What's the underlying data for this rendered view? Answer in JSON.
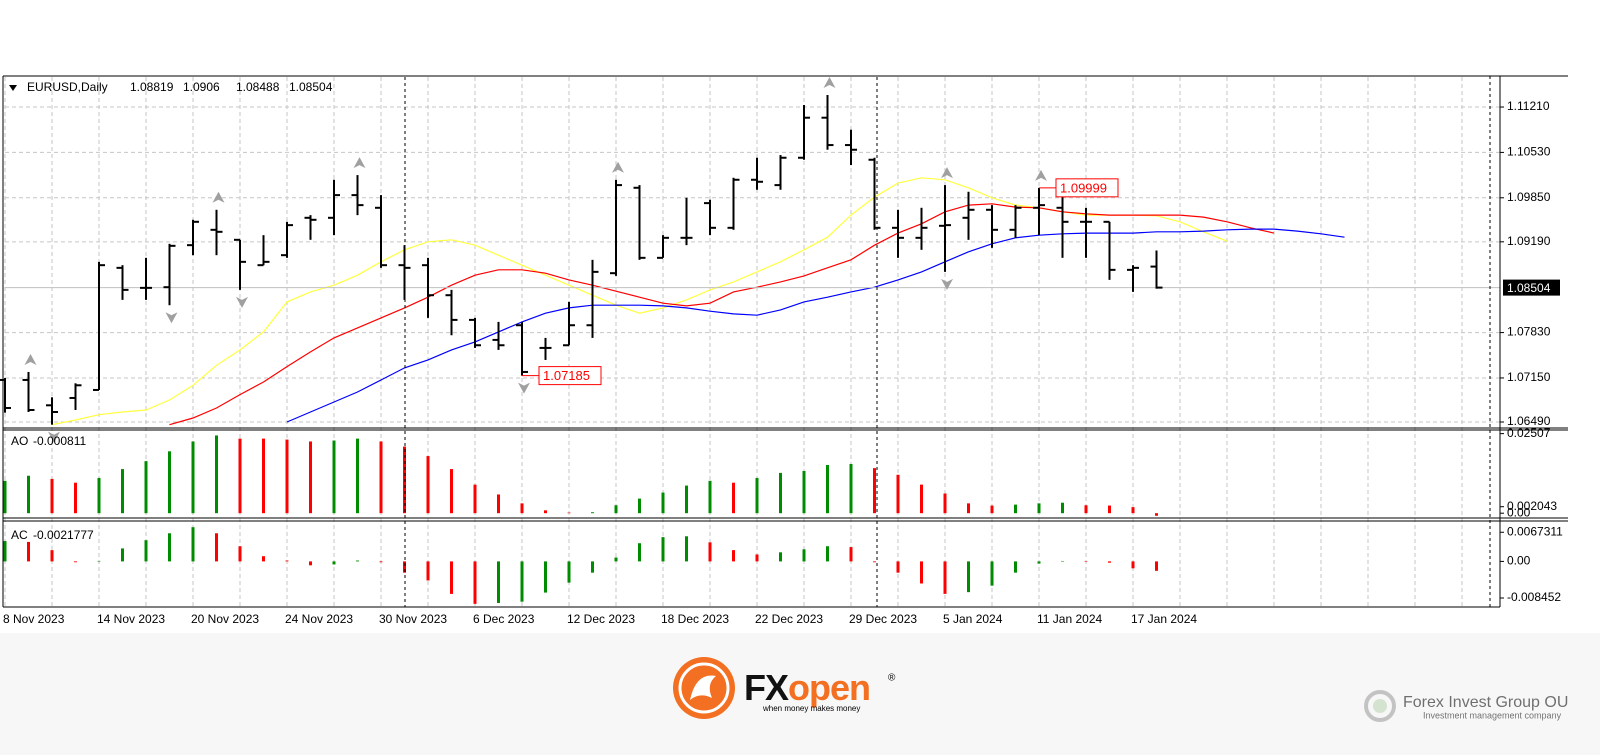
{
  "chart_data": [
    {
      "type": "ohlc",
      "title": "EURUSD,Daily",
      "grid": true,
      "color": "#000000",
      "categories": [
        "8 Nov 2023",
        null,
        null,
        null,
        "14 Nov 2023",
        null,
        null,
        null,
        "20 Nov 2023",
        null,
        null,
        null,
        "24 Nov 2023",
        null,
        null,
        null,
        "30 Nov 2023",
        null,
        null,
        null,
        "6 Dec 2023",
        null,
        null,
        null,
        "12 Dec 2023",
        null,
        null,
        null,
        "18 Dec 2023",
        null,
        null,
        null,
        "22 Dec 2023",
        null,
        null,
        null,
        "29 Dec 2023",
        null,
        null,
        null,
        "5 Jan 2024",
        null,
        null,
        null,
        "11 Jan 2024",
        null,
        null,
        null,
        "17 Jan 2024",
        null,
        null,
        null,
        null,
        null,
        null,
        null,
        null,
        null
      ],
      "open": [
        1.0712,
        1.0712,
        1.0674,
        1.0685,
        1.0697,
        1.088,
        1.085,
        1.0851,
        1.0914,
        1.0937,
        1.0922,
        1.0884,
        1.0899,
        1.0955,
        1.0955,
        1.0989,
        1.097,
        1.0884,
        1.0884,
        1.0839,
        1.0802,
        1.0772,
        1.0794,
        1.076,
        1.0764,
        1.0794,
        1.0872,
        1.1,
        1.0895,
        1.0925,
        1.0977,
        1.094,
        1.1012,
        1.1004,
        1.1045,
        1.1105,
        1.1064,
        1.1042,
        1.094,
        1.0925,
        1.0943,
        1.0955,
        1.0967,
        1.0937,
        1.097,
        1.097,
        1.0949,
        1.0949,
        1.0877,
        1.08819,
        null,
        null,
        null,
        null,
        null,
        null,
        null,
        null
      ],
      "high": [
        1.0715,
        1.0724,
        1.0686,
        1.0707,
        1.0889,
        1.0884,
        1.0895,
        1.0916,
        1.0952,
        1.0967,
        1.0922,
        1.0929,
        1.0949,
        1.0959,
        1.1012,
        1.1019,
        1.0989,
        1.0914,
        1.0895,
        1.0847,
        1.0805,
        1.0799,
        1.0799,
        1.0775,
        1.0829,
        1.0892,
        1.1012,
        1.1004,
        1.0929,
        1.0985,
        1.0982,
        1.1015,
        1.1045,
        1.1049,
        1.1124,
        1.1139,
        1.1087,
        1.1045,
        1.0967,
        1.097,
        1.1004,
        1.0994,
        1.0974,
        1.0974,
        1.09999,
        1.0989,
        1.097,
        1.0949,
        1.0884,
        1.0906,
        null,
        null,
        null,
        null,
        null,
        null,
        null,
        null
      ],
      "low": [
        1.0663,
        1.0664,
        1.0645,
        1.0667,
        1.0697,
        1.0832,
        1.0832,
        1.0824,
        1.0899,
        1.0899,
        1.0847,
        1.0884,
        1.0895,
        1.0922,
        1.0929,
        1.0959,
        1.088,
        1.0832,
        1.0805,
        1.0779,
        1.076,
        1.0757,
        1.07185,
        1.0742,
        1.0764,
        1.0775,
        1.0868,
        1.0892,
        1.0895,
        1.0914,
        1.0929,
        1.0937,
        1.0997,
        1.0997,
        1.1042,
        1.1057,
        1.1034,
        1.0937,
        1.0895,
        1.0907,
        1.0874,
        1.0922,
        1.091,
        1.0925,
        1.0929,
        1.0895,
        1.0895,
        1.0862,
        1.0844,
        1.08488,
        null,
        null,
        null,
        null,
        null,
        null,
        null,
        null
      ],
      "close": [
        1.067,
        1.0667,
        1.0664,
        1.0704,
        1.0884,
        1.0847,
        1.085,
        1.0913,
        1.0949,
        1.0934,
        1.0889,
        1.0889,
        1.0944,
        1.0952,
        1.0989,
        1.0974,
        1.0884,
        1.088,
        1.0839,
        1.0802,
        1.0764,
        1.0764,
        1.0724,
        1.076,
        1.0794,
        1.0874,
        1.1004,
        1.0895,
        1.0925,
        1.0925,
        1.094,
        1.1012,
        1.1009,
        1.1045,
        1.1105,
        1.1064,
        1.1057,
        1.094,
        1.0925,
        1.094,
        1.0944,
        1.0967,
        1.0937,
        1.097,
        1.0974,
        1.0949,
        1.0949,
        1.0877,
        1.088,
        1.08504,
        null,
        null,
        null,
        null,
        null,
        null,
        null,
        null
      ],
      "series": [
        {
          "color": "#ffff40",
          "values": [
            null,
            null,
            1.0645,
            1.0652,
            1.066,
            1.0664,
            1.0667,
            1.0682,
            1.0704,
            1.0734,
            1.0757,
            1.0784,
            1.0829,
            1.0844,
            1.0854,
            1.0869,
            1.0889,
            1.0907,
            1.0919,
            1.0922,
            1.0914,
            1.0899,
            1.0884,
            1.0869,
            1.0854,
            1.0839,
            1.0824,
            1.0812,
            1.082,
            1.0832,
            1.0847,
            1.0859,
            1.0874,
            1.0889,
            1.0907,
            1.0926,
            1.0959,
            1.0986,
            1.1007,
            1.1015,
            1.1012,
            1.1,
            1.0985,
            1.0974,
            1.097,
            1.0964,
            1.0959,
            1.0959,
            1.0959,
            1.0958,
            1.0949,
            1.0934,
            1.092,
            null,
            null,
            null,
            null,
            null
          ]
        },
        {
          "color": "#ff0000",
          "values": [
            null,
            null,
            null,
            null,
            null,
            null,
            null,
            1.0645,
            1.0655,
            1.067,
            1.069,
            1.0709,
            1.0732,
            1.0754,
            1.0775,
            1.079,
            1.0805,
            1.082,
            1.0836,
            1.0854,
            1.0869,
            1.0877,
            1.0877,
            1.0872,
            1.0862,
            1.0854,
            1.0845,
            1.0836,
            1.0827,
            1.0823,
            1.0827,
            1.0844,
            1.0851,
            1.0859,
            1.0868,
            1.088,
            1.0892,
            1.0914,
            1.0932,
            1.0946,
            1.0964,
            1.0974,
            1.0976,
            1.0971,
            1.097,
            1.0964,
            1.0961,
            1.0959,
            1.0959,
            1.0959,
            1.0959,
            1.0956,
            1.0949,
            1.094,
            1.0932,
            null,
            null,
            null
          ]
        },
        {
          "color": "#0000ff",
          "values": [
            null,
            null,
            null,
            null,
            null,
            null,
            null,
            null,
            null,
            null,
            null,
            null,
            1.0649,
            1.0664,
            1.0679,
            1.0694,
            1.0712,
            1.073,
            1.0742,
            1.0757,
            1.0769,
            1.0784,
            1.0799,
            1.0812,
            1.082,
            1.0824,
            1.0824,
            1.0824,
            1.0823,
            1.082,
            1.0815,
            1.0811,
            1.0809,
            1.0817,
            1.0829,
            1.0836,
            1.0844,
            1.0851,
            1.0862,
            1.0874,
            1.0889,
            1.0904,
            1.0916,
            1.0925,
            1.0929,
            1.0931,
            1.0932,
            1.0932,
            1.0932,
            1.0934,
            1.0934,
            1.0935,
            1.0937,
            1.0938,
            1.0938,
            1.0935,
            1.0931,
            1.0926
          ]
        }
      ],
      "ylim": [
        1.064,
        1.1166
      ],
      "yticks": [
        {
          "value": 1.1121,
          "label": "1.11210"
        },
        {
          "value": 1.1053,
          "label": "1.10530"
        },
        {
          "value": 1.0985,
          "label": "1.09850"
        },
        {
          "value": 1.0919,
          "label": "1.09190"
        },
        {
          "value": 1.0783,
          "label": "1.07830"
        },
        {
          "value": 1.0715,
          "label": "1.07150"
        },
        {
          "value": 1.0649,
          "label": "1.06490"
        }
      ]
    },
    {
      "type": "bar",
      "title": "AO",
      "up_color": "#008c00",
      "down_color": "#ff0000",
      "values": [
        0.0102,
        0.0118,
        0.0108,
        0.0096,
        0.0111,
        0.0139,
        0.0164,
        0.0195,
        0.0226,
        0.0245,
        0.0235,
        0.0235,
        0.0232,
        0.0226,
        0.0229,
        0.0235,
        0.0226,
        0.021,
        0.018,
        0.0139,
        0.009,
        0.0059,
        0.0031,
        0.0009,
        0.0002,
        0.0003,
        0.0025,
        0.0046,
        0.0065,
        0.0087,
        0.0102,
        0.0096,
        0.0111,
        0.0127,
        0.0133,
        0.0152,
        0.0155,
        0.0142,
        0.0121,
        0.009,
        0.0062,
        0.0031,
        0.0024,
        0.0027,
        0.0031,
        0.0033,
        0.0025,
        0.0024,
        0.0019,
        -0.000811
      ],
      "ylim": [
        -0.0012,
        0.0259
      ],
      "yticks": [
        0.02507,
        0.002043,
        {
          "value": 0,
          "label": "0.00"
        }
      ]
    },
    {
      "type": "bar",
      "title": "AC",
      "up_color": "#008c00",
      "down_color": "#ff0000",
      "values": [
        0.0047,
        0.0045,
        0.0026,
        -0.0002,
        0.0001,
        0.003,
        0.0049,
        0.0065,
        0.0079,
        0.0065,
        0.0035,
        0.0012,
        0.0002,
        -0.0009,
        -0.0007,
        0.0002,
        -0.0002,
        -0.0026,
        -0.0044,
        -0.0075,
        -0.0098,
        -0.0096,
        -0.0093,
        -0.0072,
        -0.0049,
        -0.0026,
        0.0009,
        0.0042,
        0.0056,
        0.0058,
        0.0044,
        0.0026,
        0.0016,
        0.0021,
        0.0028,
        0.0035,
        0.0033,
        -0.0002,
        -0.0026,
        -0.0051,
        -0.0075,
        -0.0071,
        -0.0056,
        -0.0026,
        -0.0005,
        0.0001,
        -0.0001,
        -0.0003,
        -0.0016,
        -0.0021777
      ],
      "ylim": [
        -0.0103,
        0.0091
      ],
      "yticks": [
        0.0067311,
        {
          "value": 0,
          "label": "0.00"
        },
        -0.008452
      ]
    }
  ],
  "branding": {
    "logo_prefix": "FX",
    "logo_suffix": "open",
    "registered": "®",
    "tagline": "when money makes money",
    "company": "Forex Invest Group OU",
    "company_tagline": "Investment management company"
  }
}
